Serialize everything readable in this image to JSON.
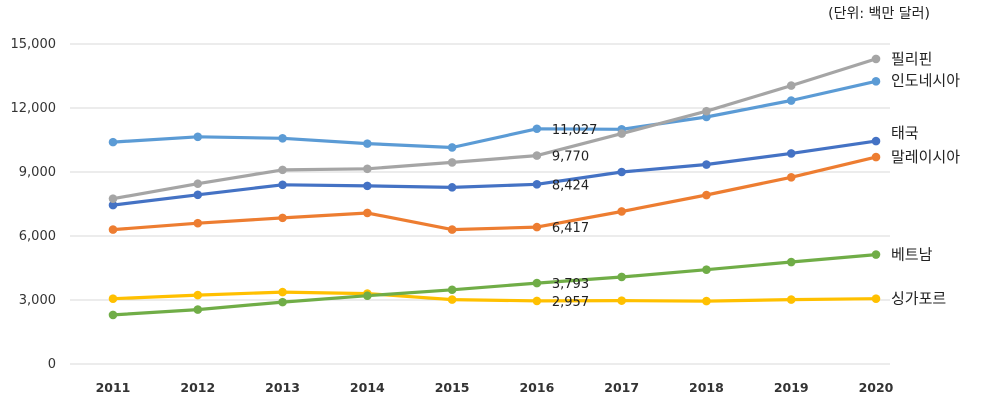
{
  "chart_data": {
    "type": "line",
    "title": "",
    "unit_note": "(단위: 백만 달러)",
    "xlabel": "",
    "ylabel": "",
    "ylim": [
      0,
      15000
    ],
    "yticks": [
      0,
      3000,
      6000,
      9000,
      12000,
      15000
    ],
    "ytick_labels": [
      "0",
      "3,000",
      "6,000",
      "9,000",
      "12,000",
      "15,000"
    ],
    "categories": [
      "2011",
      "2012",
      "2013",
      "2014",
      "2015",
      "2016",
      "2017",
      "2018",
      "2019",
      "2020"
    ],
    "grid": true,
    "legend": "inline labels at right end of lines",
    "series": [
      {
        "name": "필리핀",
        "color": "#a5a5a5",
        "values": [
          7750,
          8450,
          9100,
          9150,
          9450,
          9770,
          10800,
          11850,
          13050,
          14300
        ]
      },
      {
        "name": "인도네시아",
        "color": "#5b9bd5",
        "values": [
          10400,
          10650,
          10580,
          10330,
          10150,
          11027,
          11000,
          11580,
          12350,
          13250
        ]
      },
      {
        "name": "태국",
        "color": "#4472c4",
        "values": [
          7450,
          7930,
          8400,
          8350,
          8280,
          8424,
          9000,
          9350,
          9870,
          10450
        ]
      },
      {
        "name": "말레이시아",
        "color": "#ed7d31",
        "values": [
          6300,
          6600,
          6850,
          7080,
          6300,
          6417,
          7150,
          7920,
          8750,
          9700
        ]
      },
      {
        "name": "베트남",
        "color": "#70ad47",
        "values": [
          2300,
          2550,
          2900,
          3200,
          3480,
          3793,
          4080,
          4420,
          4780,
          5130
        ]
      },
      {
        "name": "싱가포르",
        "color": "#ffc000",
        "values": [
          3060,
          3230,
          3370,
          3300,
          3020,
          2957,
          2970,
          2950,
          3020,
          3060
        ]
      }
    ],
    "annotations": [
      {
        "series": "인도네시아",
        "category": "2016",
        "text": "11,027"
      },
      {
        "series": "필리핀",
        "category": "2016",
        "text": "9,770"
      },
      {
        "series": "태국",
        "category": "2016",
        "text": "8,424"
      },
      {
        "series": "말레이시아",
        "category": "2016",
        "text": "6,417"
      },
      {
        "series": "베트남",
        "category": "2016",
        "text": "3,793"
      },
      {
        "series": "싱가포르",
        "category": "2016",
        "text": "2,957"
      }
    ]
  }
}
